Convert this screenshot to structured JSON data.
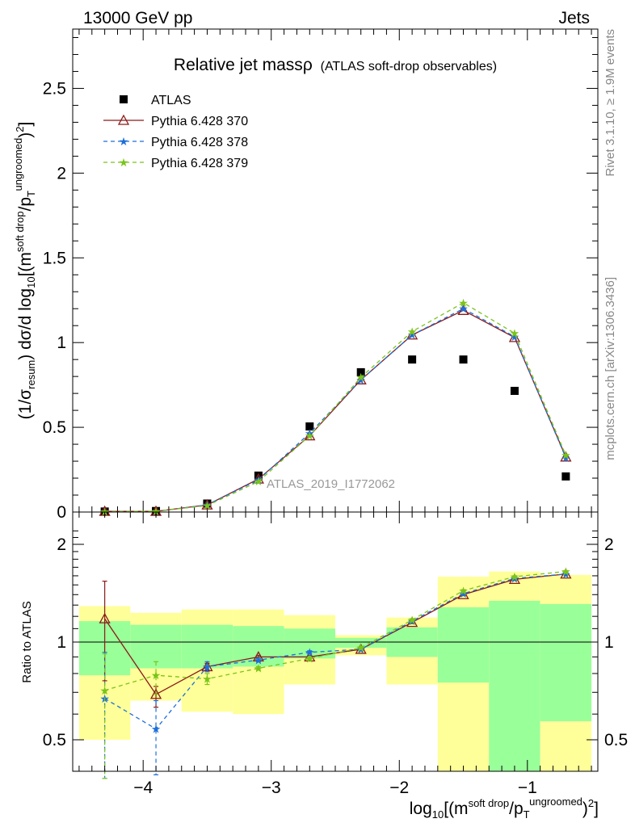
{
  "header": {
    "energy_label": "13000 GeV pp",
    "process_label": "Jets"
  },
  "side_labels": {
    "rivet": "Rivet 3.1.10, ≥ 1.9M events",
    "mcplots": "mcplots.cern.ch [arXiv:1306.3436]"
  },
  "chart_data": [
    {
      "type": "scatter",
      "title": "Relative jet mass",
      "title_symbol": "ρ",
      "subtitle": "(ATLAS soft-drop observables)",
      "analysis_label": "ATLAS_2019_I1772062",
      "ylabel_parts": {
        "pre": "(1/σ",
        "sub1": "resum",
        "mid": ") dσ/d log",
        "sub2": "10",
        "mid2": "[(m",
        "sup1": "soft drop",
        "mid3": "/p",
        "sub3": "T",
        "sup2": "ungroomed",
        "post": ")",
        "sup3": "2",
        "end": "]"
      },
      "xlim": [
        -4.55,
        -0.45
      ],
      "ylim": [
        0,
        2.85
      ],
      "x_ticks": [
        -4,
        -3,
        -2,
        -1
      ],
      "x_tick_labels": [
        "−4",
        "−3",
        "−2",
        "−1"
      ],
      "y_ticks": [
        0,
        0.5,
        1,
        1.5,
        2,
        2.5
      ],
      "y_tick_labels": [
        "0",
        "0.5",
        "1",
        "1.5",
        "2",
        "2.5"
      ],
      "bins": [
        -4.5,
        -4.1,
        -3.7,
        -3.3,
        -2.9,
        -2.5,
        -2.1,
        -1.7,
        -1.3,
        -0.9,
        -0.5
      ],
      "x": [
        -4.3,
        -3.9,
        -3.5,
        -3.1,
        -2.7,
        -2.3,
        -1.9,
        -1.5,
        -1.1,
        -0.7
      ],
      "legend": [
        "ATLAS",
        "Pythia 6.428 370",
        "Pythia 6.428 378",
        "Pythia 6.428 379"
      ],
      "legend_position": "top-left",
      "series": [
        {
          "name": "ATLAS",
          "color": "#000000",
          "marker": "square",
          "values": [
            0.003,
            0.006,
            0.05,
            0.215,
            0.505,
            0.825,
            0.9,
            0.9,
            0.715,
            0.21
          ]
        },
        {
          "name": "Pythia 6.428 370",
          "color": "#8b1a1a",
          "marker": "triangle",
          "dash": "",
          "values": [
            0.004,
            0.004,
            0.042,
            0.195,
            0.45,
            0.78,
            1.045,
            1.19,
            1.03,
            0.325
          ]
        },
        {
          "name": "Pythia 6.428 378",
          "color": "#1e6fd9",
          "marker": "star",
          "dash": "5,4",
          "values": [
            0.002,
            0.003,
            0.042,
            0.19,
            0.465,
            0.78,
            1.045,
            1.2,
            1.035,
            0.32
          ]
        },
        {
          "name": "Pythia 6.428 379",
          "color": "#7ac41a",
          "marker": "star",
          "dash": "5,4",
          "values": [
            0.002,
            0.005,
            0.038,
            0.18,
            0.45,
            0.795,
            1.065,
            1.235,
            1.055,
            0.335
          ]
        }
      ]
    },
    {
      "type": "scatter",
      "ylabel": "Ratio to ATLAS",
      "xlabel_parts": {
        "pre": "log",
        "sub1": "10",
        "mid": "[(m",
        "sup1": "soft drop",
        "mid2": "/p",
        "sub2": "T",
        "sup2": "ungroomed",
        "post": ")",
        "sup3": "2",
        "end": "]"
      },
      "xlim": [
        -4.55,
        -0.45
      ],
      "ylim": [
        0.34,
        2.28
      ],
      "y_ticks": [
        0.5,
        1,
        2
      ],
      "y_tick_labels": [
        "0.5",
        "1",
        "2"
      ],
      "reference_line": 1,
      "bands": {
        "inner_color": "#99ff99",
        "outer_color": "#ffff99",
        "inner_lo": [
          0.79,
          0.83,
          0.83,
          0.84,
          0.89,
          0.96,
          0.9,
          0.75,
          0.39,
          0.57
        ],
        "inner_hi": [
          1.16,
          1.13,
          1.13,
          1.12,
          1.1,
          1.03,
          1.11,
          1.28,
          1.34,
          1.31
        ],
        "outer_lo": [
          0.5,
          0.66,
          0.61,
          0.6,
          0.74,
          0.91,
          0.74,
          0.34,
          0.34,
          0.34
        ],
        "outer_hi": [
          1.29,
          1.23,
          1.26,
          1.26,
          1.21,
          1.05,
          1.19,
          1.59,
          1.65,
          1.61
        ]
      },
      "series": [
        {
          "name": "Pythia 6.428 370",
          "color": "#8b1a1a",
          "marker": "triangle",
          "dash": "",
          "values": [
            1.18,
            0.69,
            0.84,
            0.9,
            0.9,
            0.95,
            1.15,
            1.4,
            1.56,
            1.62
          ],
          "err_lo": [
            0.42,
            0.06,
            0.02,
            0.01,
            0.01,
            0.01,
            0.01,
            0.01,
            0.01,
            0.01
          ],
          "err_hi": [
            0.36,
            0.04,
            0.02,
            0.01,
            0.01,
            0.01,
            0.01,
            0.01,
            0.01,
            0.01
          ]
        },
        {
          "name": "Pythia 6.428 378",
          "color": "#1e6fd9",
          "marker": "star",
          "dash": "5,4",
          "values": [
            0.67,
            0.54,
            0.84,
            0.88,
            0.93,
            0.95,
            1.16,
            1.41,
            1.57,
            1.62
          ],
          "err_lo": [
            0.29,
            0.15,
            0.03,
            0.01,
            0.01,
            0.01,
            0.01,
            0.01,
            0.01,
            0.01
          ],
          "err_hi": [
            0.26,
            0.12,
            0.03,
            0.01,
            0.01,
            0.01,
            0.01,
            0.01,
            0.01,
            0.01
          ]
        },
        {
          "name": "Pythia 6.428 379",
          "color": "#7ac41a",
          "marker": "star",
          "dash": "5,4",
          "values": [
            0.71,
            0.79,
            0.77,
            0.83,
            0.89,
            0.96,
            1.17,
            1.44,
            1.59,
            1.65
          ],
          "err_lo": [
            0.33,
            0.1,
            0.03,
            0.01,
            0.01,
            0.01,
            0.01,
            0.01,
            0.01,
            0.01
          ],
          "err_hi": [
            0.21,
            0.08,
            0.03,
            0.01,
            0.01,
            0.01,
            0.01,
            0.01,
            0.01,
            0.01
          ]
        }
      ]
    }
  ]
}
